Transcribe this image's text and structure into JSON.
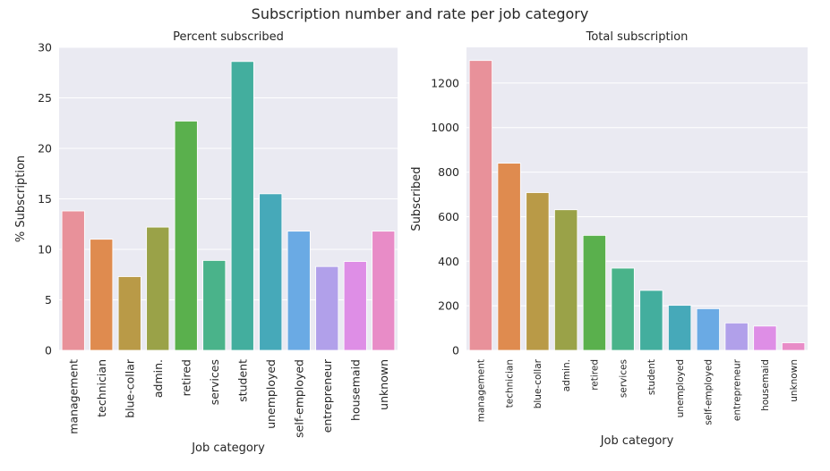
{
  "suptitle": "Subscription number and rate per job category",
  "chart_data": [
    {
      "type": "bar",
      "title": "Percent subscribed",
      "xlabel": "Job category",
      "ylabel": "% Subscription",
      "ylim": [
        0,
        30
      ],
      "yticks": [
        0,
        5,
        10,
        15,
        20,
        25,
        30
      ],
      "categories": [
        "management",
        "technician",
        "blue-collar",
        "admin.",
        "retired",
        "services",
        "student",
        "unemployed",
        "self-employed",
        "entrepreneur",
        "housemaid",
        "unknown"
      ],
      "values": [
        13.8,
        11.0,
        7.3,
        12.2,
        22.7,
        8.9,
        28.6,
        15.5,
        11.8,
        8.3,
        8.8,
        11.8
      ],
      "colors": [
        "#e8919a",
        "#df8b4f",
        "#b99a47",
        "#9aa248",
        "#5ab04d",
        "#4ab38a",
        "#43ae9e",
        "#46a9b9",
        "#6aaae4",
        "#b1a0ea",
        "#de8ee6",
        "#e88cc7"
      ],
      "grid": true
    },
    {
      "type": "bar",
      "title": "Total subscription",
      "xlabel": "Job category",
      "ylabel": "Subscribed",
      "ylim": [
        0,
        1360
      ],
      "yticks": [
        0,
        200,
        400,
        600,
        800,
        1000,
        1200
      ],
      "categories": [
        "management",
        "technician",
        "blue-collar",
        "admin.",
        "retired",
        "services",
        "student",
        "unemployed",
        "self-employed",
        "entrepreneur",
        "housemaid",
        "unknown"
      ],
      "values": [
        1301,
        840,
        708,
        631,
        516,
        369,
        269,
        202,
        187,
        123,
        109,
        34
      ],
      "colors": [
        "#e8919a",
        "#df8b4f",
        "#b99a47",
        "#9aa248",
        "#5ab04d",
        "#4ab38a",
        "#43ae9e",
        "#46a9b9",
        "#6aaae4",
        "#b1a0ea",
        "#de8ee6",
        "#e88cc7"
      ],
      "grid": true
    }
  ]
}
